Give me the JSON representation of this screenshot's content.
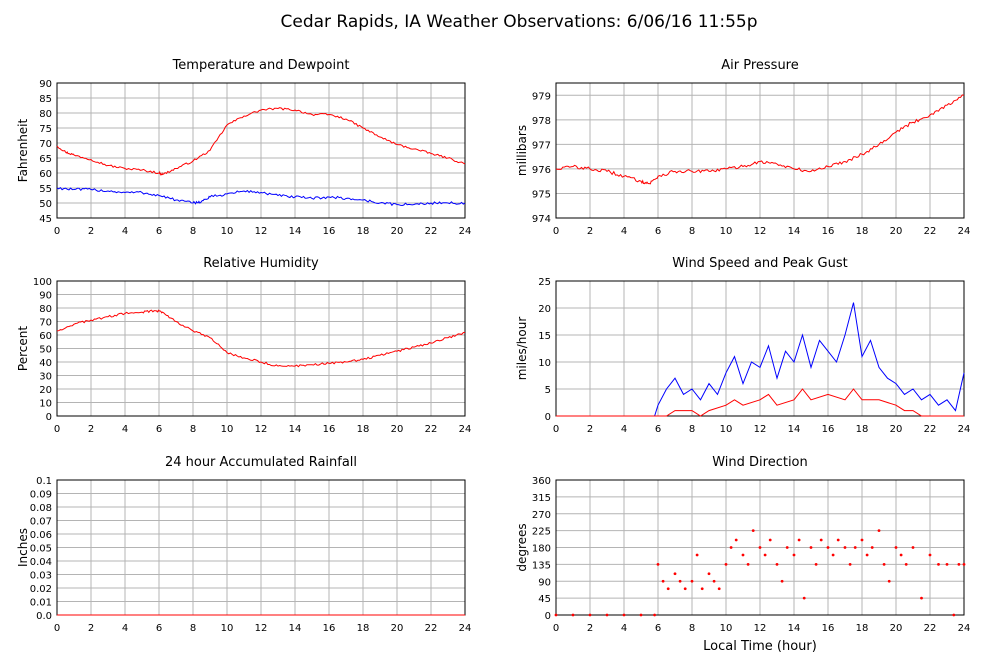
{
  "page": {
    "title": "Cedar Rapids, IA Weather Observations: 6/06/16 11:55p",
    "x_axis_caption": "Local Time (hour)"
  },
  "colors": {
    "red": "#ff0000",
    "blue": "#0000ff",
    "grid": "#b4b4b4"
  },
  "chart_data": [
    {
      "id": "temp",
      "type": "line",
      "title": "Temperature and Dewpoint",
      "ylabel": "Fahrenheit",
      "xlabel": "",
      "xlim": [
        0,
        24
      ],
      "ylim": [
        45,
        90
      ],
      "x_ticks": [
        0,
        2,
        4,
        6,
        8,
        10,
        12,
        14,
        16,
        18,
        20,
        22,
        24
      ],
      "y_ticks": [
        "45",
        "50",
        "55",
        "60",
        "65",
        "70",
        "75",
        "80",
        "85",
        "90"
      ],
      "grid": true,
      "series": [
        {
          "color": "red",
          "noise": 0.35,
          "points": [
            [
              0,
              69
            ],
            [
              0.5,
              67
            ],
            [
              1,
              66
            ],
            [
              2,
              64.5
            ],
            [
              3,
              62.5
            ],
            [
              4,
              61.5
            ],
            [
              5,
              61
            ],
            [
              6,
              60
            ],
            [
              6.2,
              59.5
            ],
            [
              7,
              61.5
            ],
            [
              8,
              64
            ],
            [
              9,
              67.5
            ],
            [
              10,
              76
            ],
            [
              11,
              79
            ],
            [
              12,
              81
            ],
            [
              13,
              81.5
            ],
            [
              14,
              81
            ],
            [
              15,
              79.5
            ],
            [
              16,
              79.5
            ],
            [
              17,
              78
            ],
            [
              18,
              75
            ],
            [
              19,
              72
            ],
            [
              20,
              69.5
            ],
            [
              21,
              68
            ],
            [
              22,
              66.5
            ],
            [
              23,
              65
            ],
            [
              24,
              63
            ]
          ]
        },
        {
          "color": "blue",
          "noise": 0.45,
          "points": [
            [
              0,
              55
            ],
            [
              1,
              54.5
            ],
            [
              2,
              54.5
            ],
            [
              3,
              54
            ],
            [
              4,
              53.5
            ],
            [
              5,
              53.5
            ],
            [
              6,
              52.5
            ],
            [
              7,
              51
            ],
            [
              8,
              50
            ],
            [
              8.5,
              50.5
            ],
            [
              9,
              52
            ],
            [
              10,
              53
            ],
            [
              11,
              54
            ],
            [
              12,
              53.5
            ],
            [
              13,
              52.5
            ],
            [
              14,
              52
            ],
            [
              15,
              51.5
            ],
            [
              16,
              52
            ],
            [
              17,
              51.5
            ],
            [
              18,
              51
            ],
            [
              19,
              50
            ],
            [
              20,
              49.5
            ],
            [
              21,
              49.5
            ],
            [
              22,
              50
            ],
            [
              23,
              50
            ],
            [
              24,
              50
            ]
          ]
        }
      ]
    },
    {
      "id": "pressure",
      "type": "line",
      "title": "Air Pressure",
      "ylabel": "millibars",
      "xlabel": "",
      "xlim": [
        0,
        24
      ],
      "ylim": [
        974,
        979.5
      ],
      "x_ticks": [
        0,
        2,
        4,
        6,
        8,
        10,
        12,
        14,
        16,
        18,
        20,
        22,
        24
      ],
      "y_ticks": [
        "974",
        "975",
        "976",
        "977",
        "978",
        "979"
      ],
      "grid": true,
      "series": [
        {
          "color": "red",
          "noise": 0.07,
          "points": [
            [
              0,
              976
            ],
            [
              1,
              976.1
            ],
            [
              2,
              976
            ],
            [
              3,
              975.9
            ],
            [
              4,
              975.7
            ],
            [
              5,
              975.5
            ],
            [
              5.5,
              975.4
            ],
            [
              6,
              975.7
            ],
            [
              7,
              975.9
            ],
            [
              8,
              975.9
            ],
            [
              9,
              975.9
            ],
            [
              10,
              976
            ],
            [
              11,
              976.1
            ],
            [
              12,
              976.3
            ],
            [
              13,
              976.2
            ],
            [
              14,
              976
            ],
            [
              15,
              975.9
            ],
            [
              16,
              976.1
            ],
            [
              17,
              976.3
            ],
            [
              18,
              976.6
            ],
            [
              19,
              977
            ],
            [
              20,
              977.5
            ],
            [
              21,
              977.9
            ],
            [
              22,
              978.2
            ],
            [
              23,
              978.6
            ],
            [
              24,
              979
            ]
          ]
        }
      ]
    },
    {
      "id": "humidity",
      "type": "line",
      "title": "Relative Humidity",
      "ylabel": "Percent",
      "xlabel": "",
      "xlim": [
        0,
        24
      ],
      "ylim": [
        0,
        100
      ],
      "x_ticks": [
        0,
        2,
        4,
        6,
        8,
        10,
        12,
        14,
        16,
        18,
        20,
        22,
        24
      ],
      "y_ticks": [
        "0",
        "10",
        "20",
        "30",
        "40",
        "50",
        "60",
        "70",
        "80",
        "90",
        "100"
      ],
      "grid": true,
      "series": [
        {
          "color": "red",
          "noise": 0.8,
          "points": [
            [
              0,
              63
            ],
            [
              1,
              68
            ],
            [
              2,
              71
            ],
            [
              3,
              73.5
            ],
            [
              4,
              76
            ],
            [
              5,
              77
            ],
            [
              5.8,
              78
            ],
            [
              6.2,
              77
            ],
            [
              7,
              70
            ],
            [
              8,
              63
            ],
            [
              9,
              58
            ],
            [
              10,
              47
            ],
            [
              11,
              43
            ],
            [
              12,
              40
            ],
            [
              13,
              37
            ],
            [
              14,
              37
            ],
            [
              15,
              38
            ],
            [
              16,
              39
            ],
            [
              17,
              40
            ],
            [
              18,
              42
            ],
            [
              19,
              45
            ],
            [
              20,
              48
            ],
            [
              21,
              51
            ],
            [
              22,
              54
            ],
            [
              23,
              58
            ],
            [
              24,
              62
            ]
          ]
        }
      ]
    },
    {
      "id": "wind",
      "type": "line",
      "title": "Wind Speed and Peak Gust",
      "ylabel": "miles/hour",
      "xlabel": "",
      "xlim": [
        0,
        24
      ],
      "ylim": [
        0,
        25
      ],
      "x_ticks": [
        0,
        2,
        4,
        6,
        8,
        10,
        12,
        14,
        16,
        18,
        20,
        22,
        24
      ],
      "y_ticks": [
        "0",
        "5",
        "10",
        "15",
        "20",
        "25"
      ],
      "grid": true,
      "series": [
        {
          "color": "blue",
          "noise": 0,
          "points": [
            [
              0,
              0
            ],
            [
              5.8,
              0
            ],
            [
              6,
              2
            ],
            [
              6.5,
              5
            ],
            [
              7,
              7
            ],
            [
              7.5,
              4
            ],
            [
              8,
              5
            ],
            [
              8.5,
              3
            ],
            [
              9,
              6
            ],
            [
              9.5,
              4
            ],
            [
              10,
              8
            ],
            [
              10.5,
              11
            ],
            [
              11,
              6
            ],
            [
              11.5,
              10
            ],
            [
              12,
              9
            ],
            [
              12.5,
              13
            ],
            [
              13,
              7
            ],
            [
              13.5,
              12
            ],
            [
              14,
              10
            ],
            [
              14.5,
              15
            ],
            [
              15,
              9
            ],
            [
              15.5,
              14
            ],
            [
              16,
              12
            ],
            [
              16.5,
              10
            ],
            [
              17,
              15
            ],
            [
              17.5,
              21
            ],
            [
              18,
              11
            ],
            [
              18.5,
              14
            ],
            [
              19,
              9
            ],
            [
              19.5,
              7
            ],
            [
              20,
              6
            ],
            [
              20.5,
              4
            ],
            [
              21,
              5
            ],
            [
              21.5,
              3
            ],
            [
              22,
              4
            ],
            [
              22.5,
              2
            ],
            [
              23,
              3
            ],
            [
              23.5,
              1
            ],
            [
              24,
              8
            ]
          ]
        },
        {
          "color": "red",
          "noise": 0,
          "points": [
            [
              0,
              0
            ],
            [
              6.5,
              0
            ],
            [
              7,
              1
            ],
            [
              8,
              1
            ],
            [
              8.5,
              0
            ],
            [
              9,
              1
            ],
            [
              10,
              2
            ],
            [
              10.5,
              3
            ],
            [
              11,
              2
            ],
            [
              12,
              3
            ],
            [
              12.5,
              4
            ],
            [
              13,
              2
            ],
            [
              14,
              3
            ],
            [
              14.5,
              5
            ],
            [
              15,
              3
            ],
            [
              16,
              4
            ],
            [
              17,
              3
            ],
            [
              17.5,
              5
            ],
            [
              18,
              3
            ],
            [
              19,
              3
            ],
            [
              20,
              2
            ],
            [
              20.5,
              1
            ],
            [
              21,
              1
            ],
            [
              21.5,
              0
            ],
            [
              24,
              0
            ]
          ]
        }
      ]
    },
    {
      "id": "rain",
      "type": "line",
      "title": "24 hour Accumulated Rainfall",
      "ylabel": "Inches",
      "xlabel": "",
      "xlim": [
        0,
        24
      ],
      "ylim": [
        0,
        0.1
      ],
      "x_ticks": [
        0,
        2,
        4,
        6,
        8,
        10,
        12,
        14,
        16,
        18,
        20,
        22,
        24
      ],
      "y_ticks": [
        "0.0",
        "0.01",
        "0.02",
        "0.03",
        "0.04",
        "0.05",
        "0.06",
        "0.07",
        "0.08",
        "0.09",
        "0.1"
      ],
      "grid": true,
      "series": [
        {
          "color": "red",
          "noise": 0,
          "points": [
            [
              0,
              0
            ],
            [
              24,
              0
            ]
          ]
        }
      ]
    },
    {
      "id": "direction",
      "type": "scatter",
      "title": "Wind Direction",
      "ylabel": "degrees",
      "xlabel": "Local Time (hour)",
      "xlim": [
        0,
        24
      ],
      "ylim": [
        0,
        360
      ],
      "x_ticks": [
        0,
        2,
        4,
        6,
        8,
        10,
        12,
        14,
        16,
        18,
        20,
        22,
        24
      ],
      "y_ticks": [
        "0",
        "45",
        "90",
        "135",
        "180",
        "225",
        "270",
        "315",
        "360"
      ],
      "grid": true,
      "series": [
        {
          "color": "red",
          "noise": 0,
          "points": [
            [
              0,
              0
            ],
            [
              1,
              0
            ],
            [
              2,
              0
            ],
            [
              3,
              0
            ],
            [
              4,
              0
            ],
            [
              5,
              0
            ],
            [
              5.8,
              0
            ],
            [
              6,
              135
            ],
            [
              6.3,
              90
            ],
            [
              6.6,
              70
            ],
            [
              7,
              110
            ],
            [
              7.3,
              90
            ],
            [
              7.6,
              70
            ],
            [
              8,
              90
            ],
            [
              8.3,
              160
            ],
            [
              8.6,
              70
            ],
            [
              9,
              110
            ],
            [
              9.3,
              90
            ],
            [
              9.6,
              70
            ],
            [
              10,
              135
            ],
            [
              10.3,
              180
            ],
            [
              10.6,
              200
            ],
            [
              11,
              160
            ],
            [
              11.3,
              135
            ],
            [
              11.6,
              225
            ],
            [
              12,
              180
            ],
            [
              12.3,
              160
            ],
            [
              12.6,
              200
            ],
            [
              13,
              135
            ],
            [
              13.3,
              90
            ],
            [
              13.6,
              180
            ],
            [
              14,
              160
            ],
            [
              14.3,
              200
            ],
            [
              14.6,
              45
            ],
            [
              15,
              180
            ],
            [
              15.3,
              135
            ],
            [
              15.6,
              200
            ],
            [
              16,
              180
            ],
            [
              16.3,
              160
            ],
            [
              16.6,
              200
            ],
            [
              17,
              180
            ],
            [
              17.3,
              135
            ],
            [
              17.6,
              180
            ],
            [
              18,
              200
            ],
            [
              18.3,
              160
            ],
            [
              18.6,
              180
            ],
            [
              19,
              225
            ],
            [
              19.3,
              135
            ],
            [
              19.6,
              90
            ],
            [
              20,
              180
            ],
            [
              20.3,
              160
            ],
            [
              20.6,
              135
            ],
            [
              21,
              180
            ],
            [
              21.5,
              45
            ],
            [
              22,
              160
            ],
            [
              22.5,
              135
            ],
            [
              23,
              135
            ],
            [
              23.4,
              0
            ],
            [
              23.7,
              135
            ],
            [
              24,
              135
            ]
          ]
        }
      ]
    }
  ]
}
